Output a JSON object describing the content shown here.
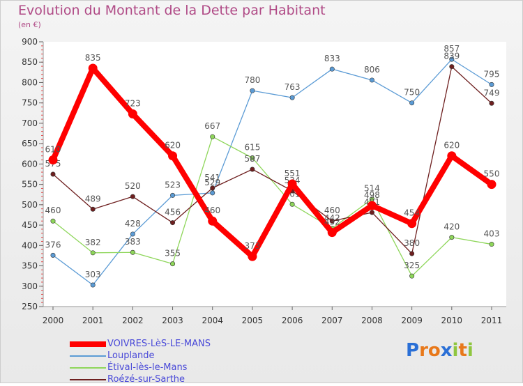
{
  "header": {
    "title": "Evolution du Montant de la Dette par Habitant",
    "subtitle": "(en €)"
  },
  "chart_data": {
    "type": "line",
    "title": "Evolution du Montant de la Dette par Habitant",
    "ylabel": "(en €)",
    "xlabel": "",
    "ylim": [
      250,
      900
    ],
    "yticks": [
      250,
      300,
      350,
      400,
      450,
      500,
      550,
      600,
      650,
      700,
      750,
      800,
      850,
      900
    ],
    "categories": [
      "2000",
      "2001",
      "2002",
      "2003",
      "2004",
      "2005",
      "2006",
      "2007",
      "2008",
      "2009",
      "2010",
      "2011"
    ],
    "series": [
      {
        "name": "Louplande",
        "color": "#5b9bd5",
        "values": [
          376,
          303,
          428,
          523,
          529,
          780,
          763,
          833,
          806,
          750,
          857,
          795
        ],
        "labels": [
          "376",
          "303",
          "428",
          "523",
          "529",
          "780",
          "763",
          "833",
          "806",
          "750",
          "857",
          "795"
        ]
      },
      {
        "name": "Étival-lès-le-Mans",
        "color": "#8ed65a",
        "values": [
          460,
          382,
          383,
          355,
          667,
          615,
          501,
          442,
          514,
          325,
          420,
          403
        ],
        "labels": [
          "460",
          "382",
          "383",
          "355",
          "667",
          "615",
          "501",
          "442",
          "514",
          "325",
          "420",
          "403"
        ]
      },
      {
        "name": "Roézé-sur-Sarthe",
        "color": "#6e1f1f",
        "values": [
          575,
          489,
          520,
          456,
          541,
          587,
          534,
          460,
          481,
          380,
          839,
          749
        ],
        "labels": [
          "575",
          "489",
          "520",
          "456",
          "541",
          "587",
          "534",
          "460",
          "481",
          "380",
          "839",
          "749"
        ]
      },
      {
        "name": "VOIVRES-LèS-LE-MANS",
        "color": "#ff0000",
        "values": [
          610,
          835,
          723,
          620,
          460,
          373,
          551,
          432,
          498,
          454,
          620,
          550
        ],
        "labels": [
          "610",
          "835",
          "723",
          "620",
          "460",
          "373",
          "551",
          "432",
          "498",
          "454",
          "620",
          "550"
        ]
      }
    ],
    "legend_order": [
      "VOIVRES-LèS-LE-MANS",
      "Louplande",
      "Étival-lès-le-Mans",
      "Roézé-sur-Sarthe"
    ],
    "legend_position": "bottom-left",
    "grid": false
  },
  "legend": {
    "items": [
      {
        "label": "VOIVRES-LèS-LE-MANS",
        "color": "#ff0000"
      },
      {
        "label": "Louplande",
        "color": "#5b9bd5"
      },
      {
        "label": "Étival-lès-le-Mans",
        "color": "#8ed65a"
      },
      {
        "label": "Roézé-sur-Sarthe",
        "color": "#6e1f1f"
      }
    ]
  },
  "logo": {
    "text": "Proxiti"
  }
}
